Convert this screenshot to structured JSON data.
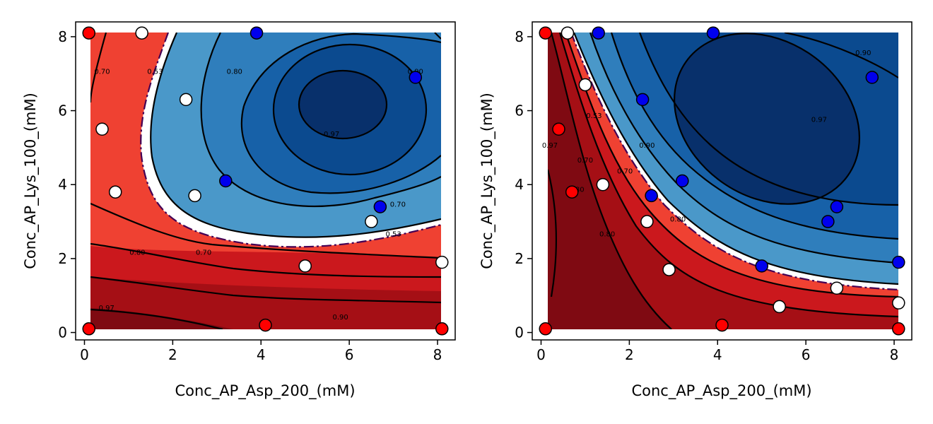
{
  "chart_data": [
    {
      "type": "contour",
      "xlabel": "Conc_AP_Asp_200_(mM)",
      "ylabel": "Conc_AP_Lys_100_(mM)",
      "xlim": [
        -0.2,
        8.4
      ],
      "ylim": [
        -0.2,
        8.4
      ],
      "xticks": [
        "0",
        "2",
        "4",
        "6",
        "8"
      ],
      "yticks": [
        "0",
        "2",
        "4",
        "6",
        "8"
      ],
      "grid": false,
      "contour_levels": [
        0.53,
        0.7,
        0.8,
        0.9,
        0.97
      ],
      "contour_labels": [
        {
          "text": "0.70",
          "x": 0.4,
          "y": 7.0
        },
        {
          "text": "0.53",
          "x": 1.6,
          "y": 7.0
        },
        {
          "text": "0.80",
          "x": 3.4,
          "y": 7.0
        },
        {
          "text": "0.90",
          "x": 7.5,
          "y": 7.0
        },
        {
          "text": "0.97",
          "x": 5.6,
          "y": 5.3
        },
        {
          "text": "0.70",
          "x": 7.1,
          "y": 3.4
        },
        {
          "text": "0.53",
          "x": 7.0,
          "y": 2.6
        },
        {
          "text": "0.70",
          "x": 2.7,
          "y": 2.1
        },
        {
          "text": "0.80",
          "x": 1.2,
          "y": 2.1
        },
        {
          "text": "0.97",
          "x": 0.5,
          "y": 0.6
        },
        {
          "text": "0.90",
          "x": 5.8,
          "y": 0.35
        }
      ],
      "points": [
        {
          "x": 0.1,
          "y": 8.1,
          "class": "red"
        },
        {
          "x": 1.3,
          "y": 8.1,
          "class": "white"
        },
        {
          "x": 3.9,
          "y": 8.1,
          "class": "blue"
        },
        {
          "x": 7.5,
          "y": 6.9,
          "class": "blue"
        },
        {
          "x": 2.3,
          "y": 6.3,
          "class": "white"
        },
        {
          "x": 0.4,
          "y": 5.5,
          "class": "white"
        },
        {
          "x": 3.2,
          "y": 4.1,
          "class": "blue"
        },
        {
          "x": 0.7,
          "y": 3.8,
          "class": "white"
        },
        {
          "x": 2.5,
          "y": 3.7,
          "class": "white"
        },
        {
          "x": 6.7,
          "y": 3.4,
          "class": "blue"
        },
        {
          "x": 6.5,
          "y": 3.0,
          "class": "white"
        },
        {
          "x": 5.0,
          "y": 1.8,
          "class": "white"
        },
        {
          "x": 8.1,
          "y": 1.9,
          "class": "white"
        },
        {
          "x": 0.1,
          "y": 0.1,
          "class": "red"
        },
        {
          "x": 4.1,
          "y": 0.2,
          "class": "red"
        },
        {
          "x": 8.1,
          "y": 0.1,
          "class": "red"
        }
      ]
    },
    {
      "type": "contour",
      "xlabel": "Conc_AP_Asp_200_(mM)",
      "ylabel": "Conc_AP_Lys_100_(mM)",
      "xlim": [
        -0.2,
        8.4
      ],
      "ylim": [
        -0.2,
        8.4
      ],
      "xticks": [
        "0",
        "2",
        "4",
        "6",
        "8"
      ],
      "yticks": [
        "0",
        "2",
        "4",
        "6",
        "8"
      ],
      "grid": false,
      "contour_levels": [
        0.53,
        0.7,
        0.8,
        0.9,
        0.97
      ],
      "contour_labels": [
        {
          "text": "0.90",
          "x": 7.3,
          "y": 7.5
        },
        {
          "text": "0.97",
          "x": 6.3,
          "y": 5.7
        },
        {
          "text": "0.90",
          "x": 2.4,
          "y": 5.0
        },
        {
          "text": "0.70",
          "x": 1.9,
          "y": 4.3
        },
        {
          "text": "0.80",
          "x": 3.1,
          "y": 3.0
        },
        {
          "text": "0.53",
          "x": 1.2,
          "y": 5.8
        },
        {
          "text": "0.70",
          "x": 1.0,
          "y": 4.6
        },
        {
          "text": "0.80",
          "x": 0.8,
          "y": 3.8
        },
        {
          "text": "0.80",
          "x": 1.5,
          "y": 2.6
        },
        {
          "text": "0.97",
          "x": 0.2,
          "y": 5.0
        },
        {
          "text": "3",
          "x": 0.95,
          "y": 6.7
        }
      ],
      "points": [
        {
          "x": 0.1,
          "y": 8.1,
          "class": "red"
        },
        {
          "x": 0.6,
          "y": 8.1,
          "class": "white"
        },
        {
          "x": 1.3,
          "y": 8.1,
          "class": "blue"
        },
        {
          "x": 3.9,
          "y": 8.1,
          "class": "blue"
        },
        {
          "x": 7.5,
          "y": 6.9,
          "class": "blue"
        },
        {
          "x": 1.0,
          "y": 6.7,
          "class": "white"
        },
        {
          "x": 2.3,
          "y": 6.3,
          "class": "blue"
        },
        {
          "x": 0.4,
          "y": 5.5,
          "class": "red"
        },
        {
          "x": 3.2,
          "y": 4.1,
          "class": "blue"
        },
        {
          "x": 1.4,
          "y": 4.0,
          "class": "white"
        },
        {
          "x": 0.7,
          "y": 3.8,
          "class": "red"
        },
        {
          "x": 2.5,
          "y": 3.7,
          "class": "blue"
        },
        {
          "x": 6.7,
          "y": 3.4,
          "class": "blue"
        },
        {
          "x": 6.5,
          "y": 3.0,
          "class": "blue"
        },
        {
          "x": 2.4,
          "y": 3.0,
          "class": "white"
        },
        {
          "x": 5.0,
          "y": 1.8,
          "class": "blue"
        },
        {
          "x": 8.1,
          "y": 1.9,
          "class": "blue"
        },
        {
          "x": 2.9,
          "y": 1.7,
          "class": "white"
        },
        {
          "x": 6.7,
          "y": 1.2,
          "class": "white"
        },
        {
          "x": 8.1,
          "y": 0.8,
          "class": "white"
        },
        {
          "x": 5.4,
          "y": 0.7,
          "class": "white"
        },
        {
          "x": 0.1,
          "y": 0.1,
          "class": "red"
        },
        {
          "x": 4.1,
          "y": 0.2,
          "class": "red"
        },
        {
          "x": 8.1,
          "y": 0.1,
          "class": "red"
        }
      ]
    }
  ],
  "colors": {
    "blue_1": "#08306b",
    "blue_2": "#0b4a8f",
    "blue_3": "#1761a8",
    "blue_4": "#2f7ebc",
    "blue_5": "#4a98c9",
    "red_1": "#ef4132",
    "red_2": "#cb181d",
    "red_3": "#a50f15",
    "red_4": "#7f0a12",
    "band_white": "#ffffff",
    "dashdot": "#440154",
    "point_red": "#ff0000",
    "point_blue": "#0000ee",
    "point_white": "#ffffff"
  }
}
